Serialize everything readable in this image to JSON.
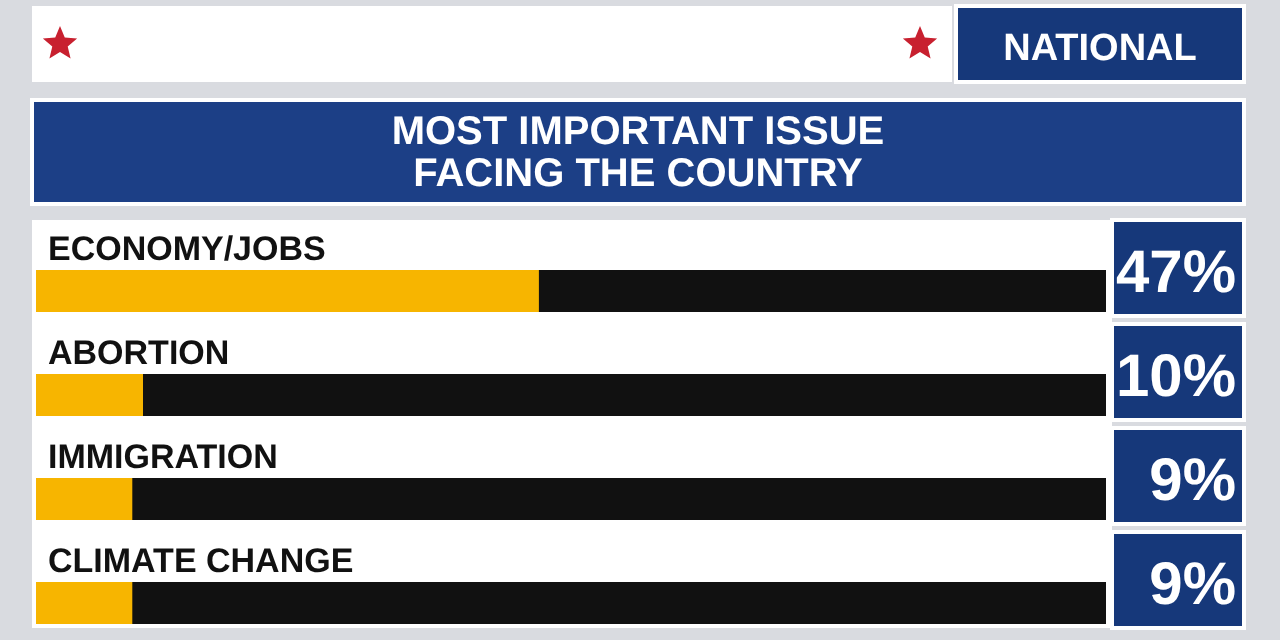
{
  "chart_data": {
    "type": "bar",
    "orientation": "horizontal",
    "subtitle": "NATIONAL",
    "title": "MOST IMPORTANT ISSUE FACING THE COUNTRY",
    "categories": [
      "ECONOMY/JOBS",
      "ABORTION",
      "IMMIGRATION",
      "CLIMATE CHANGE"
    ],
    "values": [
      47,
      10,
      9,
      9
    ],
    "color": "#f7b500",
    "xlim": [
      0,
      100
    ],
    "value_labels": [
      "47%",
      "10%",
      "9%",
      "9%"
    ]
  }
}
